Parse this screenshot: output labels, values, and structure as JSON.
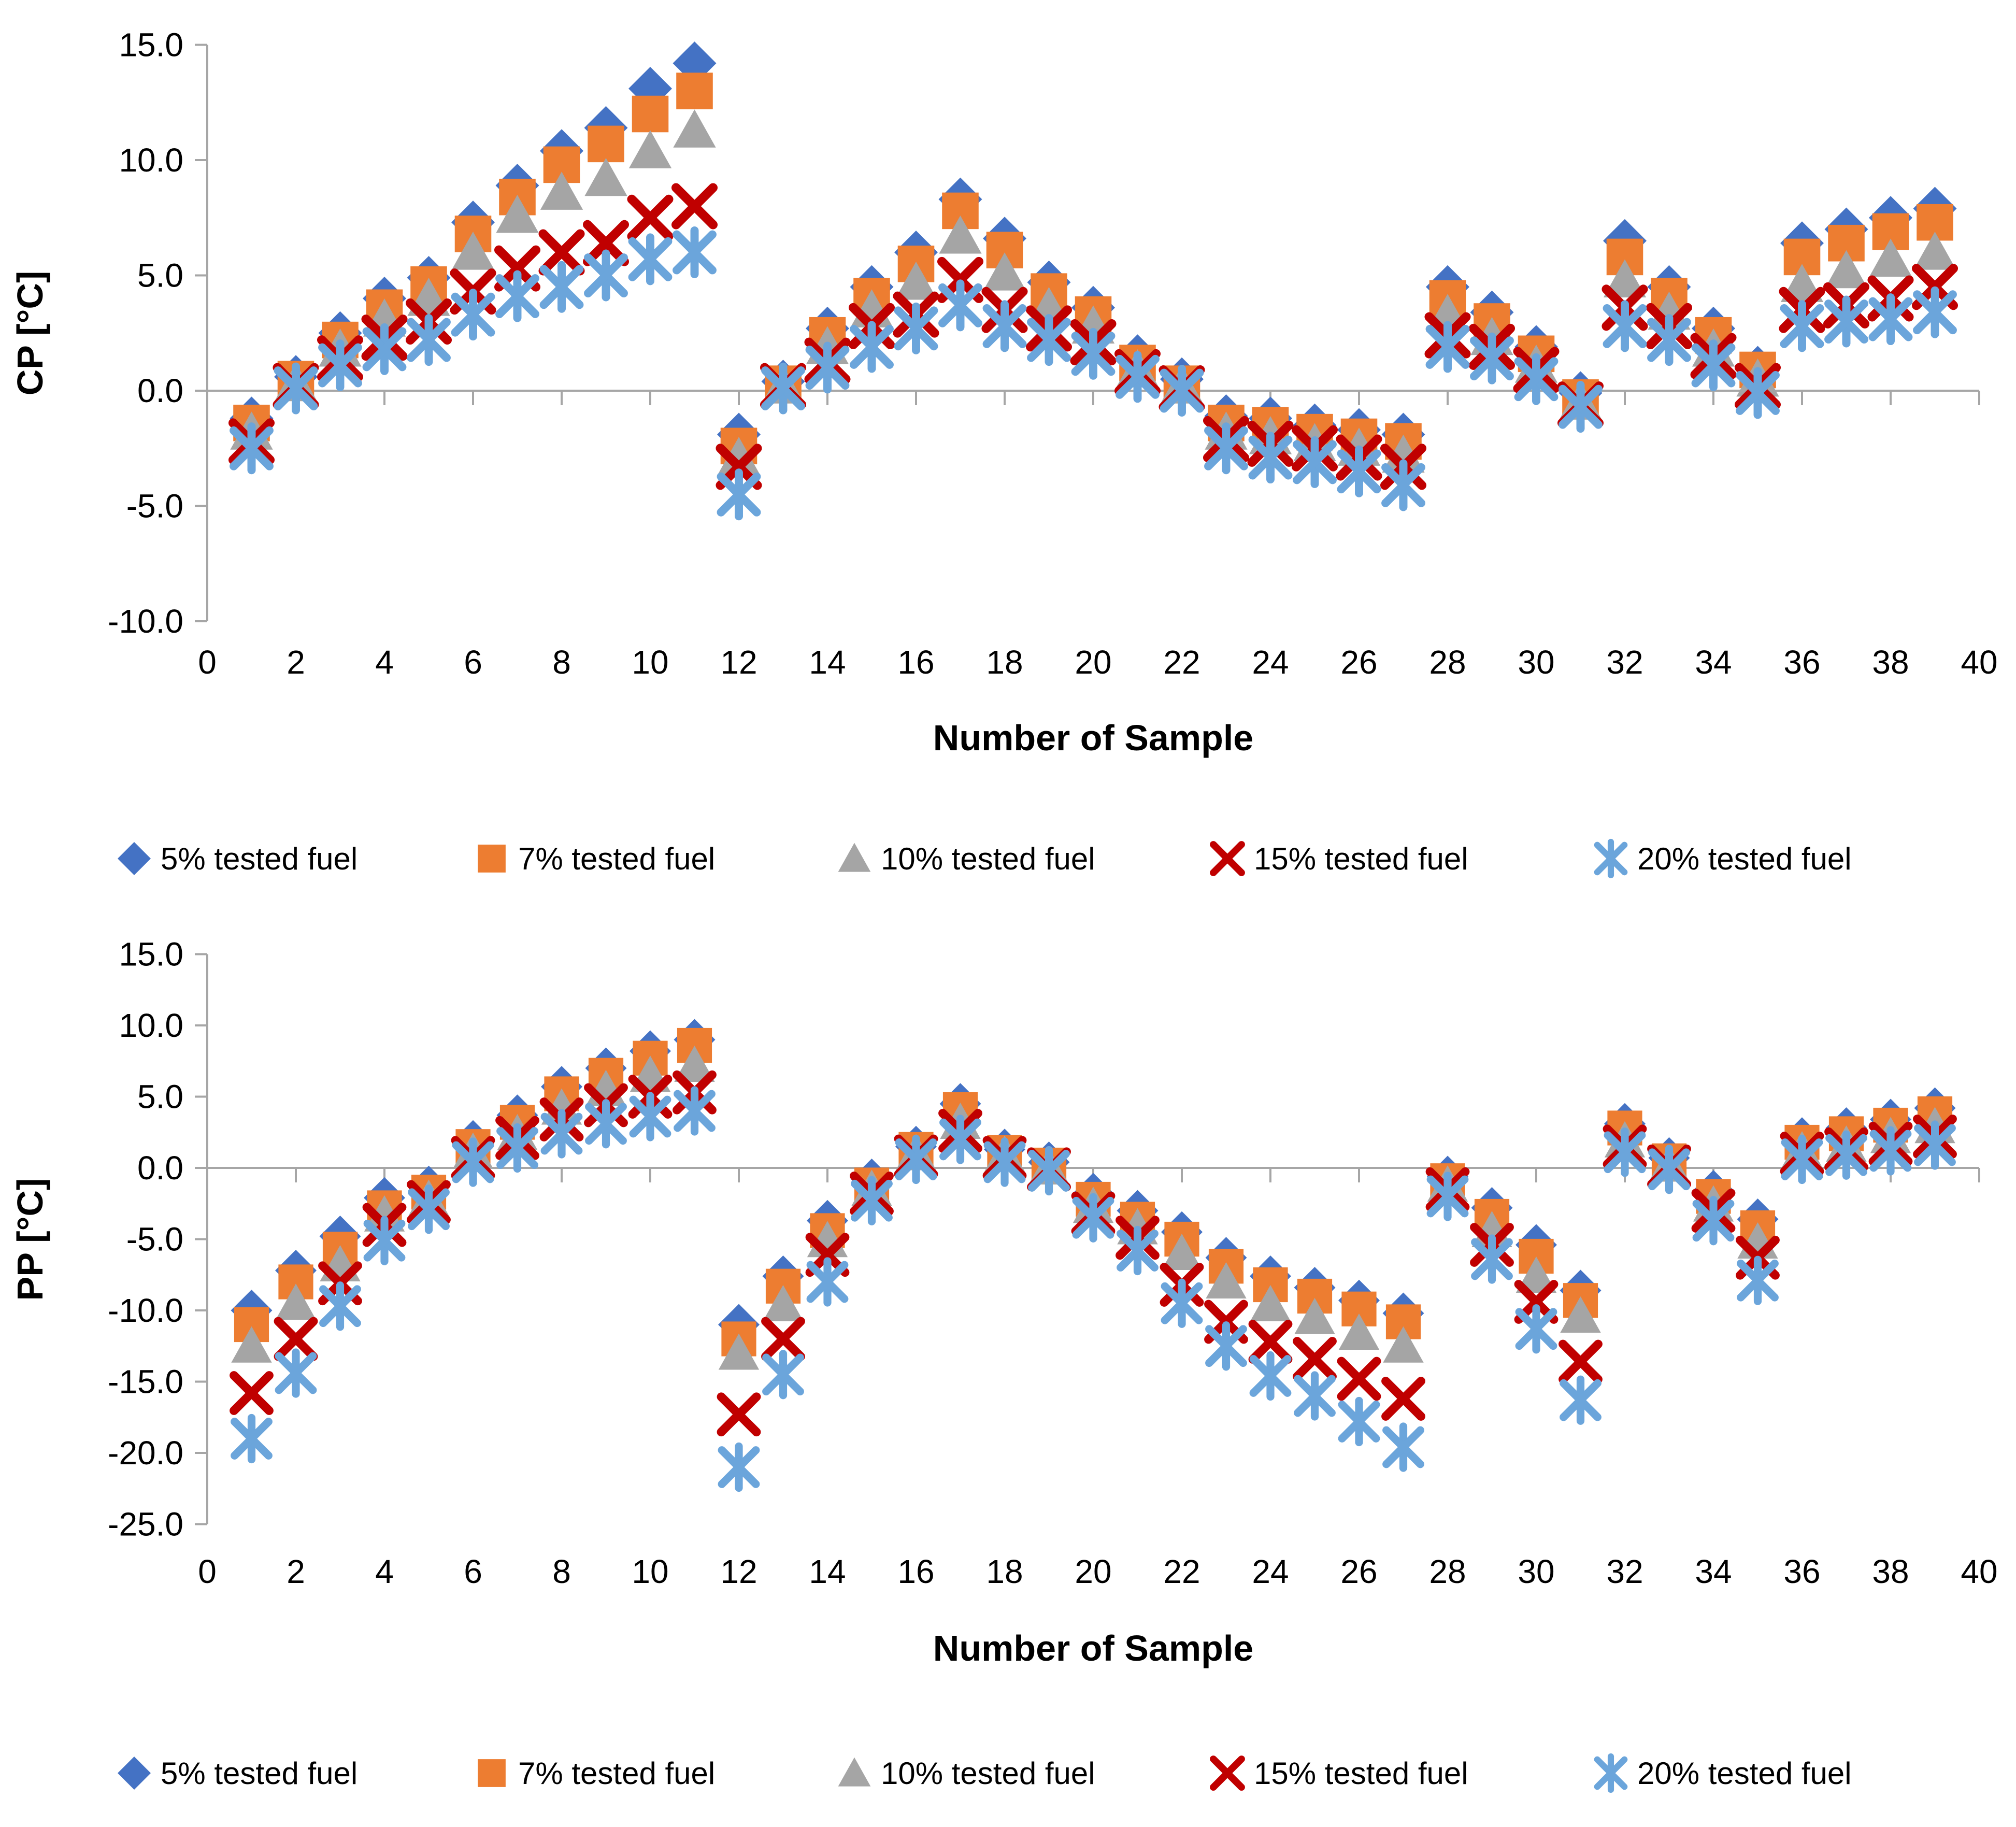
{
  "legend": {
    "items": [
      {
        "label": "5% tested fuel",
        "marker": "diamond",
        "color": "#4472C4"
      },
      {
        "label": "7% tested fuel",
        "marker": "square",
        "color": "#ED7D31"
      },
      {
        "label": "10% tested fuel",
        "marker": "triangle",
        "color": "#A5A5A5"
      },
      {
        "label": "15% tested fuel",
        "marker": "x",
        "color": "#C00000"
      },
      {
        "label": "20% tested fuel",
        "marker": "asterisk",
        "color": "#6BA5DB"
      }
    ]
  },
  "chart_data": [
    {
      "type": "scatter",
      "title": "",
      "ylabel": "CP [°C]",
      "xlabel": "Number of Sample",
      "ylim": [
        -10,
        15
      ],
      "xlim": [
        0,
        40
      ],
      "grid": false,
      "legend_position": "below",
      "y_ticks": [
        "15.0",
        "10.0",
        "5.0",
        "0.0",
        "-5.0",
        "-10.0"
      ],
      "x_ticks": [
        0,
        2,
        4,
        6,
        8,
        10,
        12,
        14,
        16,
        18,
        20,
        22,
        24,
        26,
        28,
        30,
        32,
        34,
        36,
        38,
        40
      ],
      "x": [
        1,
        2,
        3,
        4,
        5,
        6,
        7,
        8,
        9,
        10,
        11,
        12,
        13,
        14,
        15,
        16,
        17,
        18,
        19,
        20,
        21,
        22,
        23,
        24,
        25,
        26,
        27,
        28,
        29,
        30,
        31,
        32,
        33,
        34,
        35,
        36,
        37,
        38,
        39
      ],
      "series": [
        {
          "name": "5% tested fuel",
          "marker": "diamond",
          "color": "#4472C4",
          "values": [
            -1.2,
            0.6,
            2.5,
            4.0,
            4.9,
            7.3,
            8.9,
            10.4,
            11.4,
            13.1,
            14.2,
            -1.9,
            0.4,
            2.7,
            4.5,
            6.0,
            8.3,
            6.6,
            4.7,
            3.6,
            1.5,
            0.5,
            -1.1,
            -1.2,
            -1.5,
            -1.7,
            -1.9,
            4.5,
            3.4,
            1.9,
            -0.1,
            6.5,
            4.5,
            2.7,
            1.0,
            6.4,
            7.0,
            7.5,
            7.9
          ]
        },
        {
          "name": "7% tested fuel",
          "marker": "square",
          "color": "#ED7D31",
          "values": [
            -1.4,
            0.5,
            2.2,
            3.6,
            4.6,
            6.8,
            8.4,
            9.8,
            10.7,
            12.0,
            13.0,
            -2.4,
            0.3,
            2.4,
            4.1,
            5.5,
            7.8,
            6.1,
            4.3,
            3.3,
            1.2,
            0.3,
            -1.4,
            -1.5,
            -1.8,
            -2.0,
            -2.2,
            4.0,
            3.0,
            1.6,
            -0.3,
            5.8,
            4.1,
            2.4,
            0.9,
            5.8,
            6.4,
            6.9,
            7.3
          ]
        },
        {
          "name": "10% tested fuel",
          "marker": "triangle",
          "color": "#A5A5A5",
          "values": [
            -1.8,
            0.3,
            1.8,
            3.1,
            4.0,
            6.0,
            7.6,
            8.6,
            9.2,
            10.4,
            11.3,
            -2.9,
            0.2,
            1.9,
            3.5,
            4.7,
            6.7,
            5.1,
            3.6,
            2.8,
            0.9,
            0.2,
            -1.8,
            -2.0,
            -2.3,
            -2.5,
            -2.8,
            3.3,
            2.3,
            1.1,
            -0.5,
            4.8,
            3.4,
            1.8,
            0.5,
            4.6,
            5.2,
            5.7,
            6.0
          ]
        },
        {
          "name": "15% tested fuel",
          "marker": "x",
          "color": "#C00000",
          "values": [
            -2.2,
            0.2,
            1.4,
            2.3,
            3.0,
            4.3,
            5.3,
            6.0,
            6.4,
            7.5,
            8.0,
            -3.3,
            0.2,
            1.3,
            2.8,
            3.3,
            4.8,
            3.5,
            2.7,
            2.1,
            0.8,
            0.1,
            -2.1,
            -2.3,
            -2.5,
            -2.9,
            -3.3,
            2.4,
            1.9,
            0.9,
            -0.6,
            3.6,
            2.8,
            1.5,
            0.2,
            3.5,
            3.7,
            4.0,
            4.5
          ]
        },
        {
          "name": "20% tested fuel",
          "marker": "asterisk",
          "color": "#6BA5DB",
          "values": [
            -2.5,
            0.1,
            1.1,
            1.8,
            2.2,
            3.3,
            4.1,
            4.5,
            5.0,
            5.7,
            6.0,
            -4.5,
            0.1,
            1.0,
            1.9,
            2.7,
            3.7,
            2.8,
            2.2,
            1.6,
            0.6,
            0.0,
            -2.5,
            -2.9,
            -3.1,
            -3.5,
            -4.1,
            1.9,
            1.4,
            0.5,
            -0.7,
            2.8,
            2.2,
            1.1,
            -0.1,
            2.8,
            3.0,
            3.1,
            3.4
          ]
        }
      ]
    },
    {
      "type": "scatter",
      "title": "",
      "ylabel": "PP [°C]",
      "xlabel": "Number of Sample",
      "ylim": [
        -25,
        15
      ],
      "xlim": [
        0,
        40
      ],
      "grid": false,
      "legend_position": "below",
      "y_ticks": [
        "15.0",
        "10.0",
        "5.0",
        "0.0",
        "-5.0",
        "-10.0",
        "-15.0",
        "-20.0",
        "-25.0"
      ],
      "x_ticks": [
        0,
        2,
        4,
        6,
        8,
        10,
        12,
        14,
        16,
        18,
        20,
        22,
        24,
        26,
        28,
        30,
        32,
        34,
        36,
        38,
        40
      ],
      "x": [
        1,
        2,
        3,
        4,
        5,
        6,
        7,
        8,
        9,
        10,
        11,
        12,
        13,
        14,
        15,
        16,
        17,
        18,
        19,
        20,
        21,
        22,
        23,
        24,
        25,
        26,
        27,
        28,
        29,
        30,
        31,
        32,
        33,
        34,
        35,
        36,
        37,
        38,
        39
      ],
      "series": [
        {
          "name": "5% tested fuel",
          "marker": "diamond",
          "color": "#4472C4",
          "values": [
            -10.0,
            -7.2,
            -4.8,
            -2.1,
            -1.3,
            1.9,
            3.7,
            5.7,
            7.0,
            8.2,
            9.0,
            -11.0,
            -7.6,
            -3.7,
            -0.8,
            1.5,
            4.5,
            1.3,
            0.4,
            -1.8,
            -3.0,
            -4.5,
            -6.3,
            -7.6,
            -8.4,
            -9.3,
            -10.2,
            -0.6,
            -2.8,
            -5.4,
            -8.6,
            3.1,
            0.7,
            -1.6,
            -3.6,
            2.1,
            2.8,
            3.4,
            4.2
          ]
        },
        {
          "name": "7% tested fuel",
          "marker": "square",
          "color": "#ED7D31",
          "values": [
            -11.0,
            -8.0,
            -5.7,
            -2.8,
            -1.7,
            1.5,
            3.2,
            5.2,
            6.5,
            7.7,
            8.6,
            -12.0,
            -8.3,
            -4.4,
            -1.2,
            1.3,
            4.1,
            1.1,
            0.2,
            -2.2,
            -3.6,
            -5.0,
            -6.9,
            -8.2,
            -9.0,
            -9.9,
            -10.8,
            -0.9,
            -3.4,
            -6.2,
            -9.3,
            2.8,
            0.5,
            -2.0,
            -4.2,
            1.8,
            2.4,
            3.0,
            3.8
          ]
        },
        {
          "name": "10% tested fuel",
          "marker": "triangle",
          "color": "#A5A5A5",
          "values": [
            -12.5,
            -9.5,
            -6.8,
            -3.3,
            -2.2,
            1.1,
            2.4,
            4.2,
            5.5,
            6.5,
            7.2,
            -13.0,
            -9.6,
            -5.1,
            -1.5,
            1.0,
            3.2,
            0.9,
            0.0,
            -2.7,
            -4.2,
            -6.0,
            -8.0,
            -9.6,
            -10.5,
            -11.6,
            -12.5,
            -1.2,
            -4.4,
            -7.6,
            -10.4,
            1.9,
            0.2,
            -2.6,
            -5.2,
            1.2,
            1.6,
            2.2,
            2.9
          ]
        },
        {
          "name": "15% tested fuel",
          "marker": "x",
          "color": "#C00000",
          "values": [
            -15.8,
            -12.0,
            -8.1,
            -4.0,
            -2.4,
            0.7,
            2.1,
            3.4,
            4.4,
            5.0,
            5.3,
            -17.3,
            -12.0,
            -6.1,
            -1.8,
            0.8,
            2.6,
            0.7,
            -0.1,
            -3.2,
            -4.9,
            -8.2,
            -10.8,
            -12.2,
            -13.4,
            -14.8,
            -16.2,
            -1.5,
            -5.4,
            -9.4,
            -13.6,
            1.5,
            0.1,
            -3.0,
            -6.3,
            1.0,
            1.3,
            1.7,
            2.2
          ]
        },
        {
          "name": "20% tested fuel",
          "marker": "asterisk",
          "color": "#6BA5DB",
          "values": [
            -19.0,
            -14.4,
            -9.7,
            -5.1,
            -2.9,
            0.4,
            1.4,
            2.4,
            3.1,
            3.6,
            4.0,
            -21.0,
            -14.5,
            -8.0,
            -2.3,
            0.6,
            2.0,
            0.4,
            -0.2,
            -3.5,
            -5.8,
            -9.5,
            -12.5,
            -14.6,
            -16.0,
            -17.8,
            -19.6,
            -2.0,
            -6.4,
            -11.3,
            -16.3,
            1.1,
            -0.1,
            -3.7,
            -7.9,
            0.6,
            0.9,
            1.2,
            1.6
          ]
        }
      ]
    }
  ]
}
